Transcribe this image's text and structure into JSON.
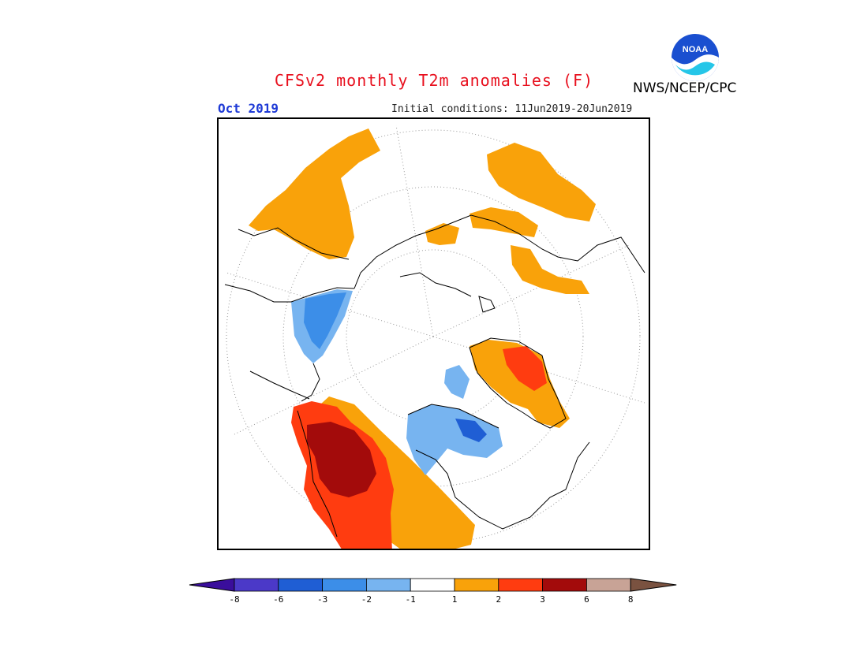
{
  "title": "CFSv2 monthly T2m anomalies (F)",
  "valid_month": "Oct 2019",
  "initial_conditions": "Initial conditions: 11Jun2019-20Jun2019",
  "agency": "NWS/NCEP/CPC",
  "logo_text": "NOAA",
  "colorbar": {
    "colors": [
      "#3a0e9c",
      "#4b39c8",
      "#1f5ed4",
      "#3c8ee8",
      "#77b4f0",
      "#ffffff",
      "#f9a20a",
      "#ff3c10",
      "#a30b0b",
      "#c8a396",
      "#7a5240"
    ],
    "labels": [
      "-8",
      "-6",
      "-3",
      "-2",
      "-1",
      "1",
      "2",
      "3",
      "6",
      "8"
    ]
  },
  "colors": {
    "warm1": "#f9a20a",
    "warm2": "#ff3c10",
    "warm3": "#a30b0b",
    "cool1": "#77b4f0",
    "cool2": "#3c8ee8",
    "cool3": "#1f5ed4"
  }
}
